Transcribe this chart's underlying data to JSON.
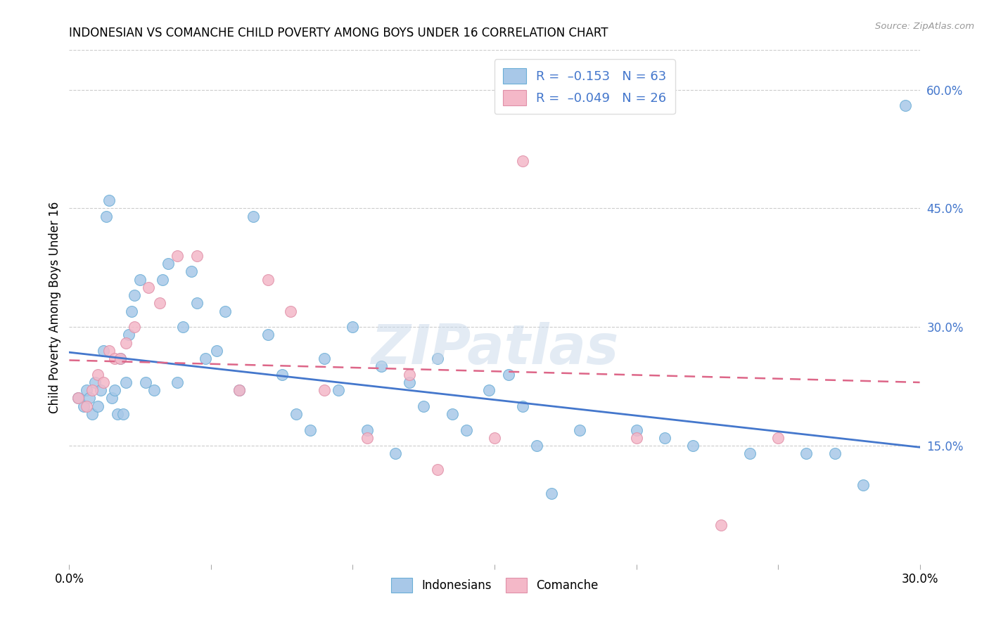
{
  "title": "INDONESIAN VS COMANCHE CHILD POVERTY AMONG BOYS UNDER 16 CORRELATION CHART",
  "source": "Source: ZipAtlas.com",
  "ylabel": "Child Poverty Among Boys Under 16",
  "xlim": [
    0.0,
    0.3
  ],
  "ylim": [
    0.0,
    0.65
  ],
  "x_ticks": [
    0.0,
    0.05,
    0.1,
    0.15,
    0.2,
    0.25,
    0.3
  ],
  "x_tick_labels": [
    "0.0%",
    "",
    "",
    "",
    "",
    "",
    "30.0%"
  ],
  "y_ticks_right": [
    0.15,
    0.3,
    0.45,
    0.6
  ],
  "y_tick_labels_right": [
    "15.0%",
    "30.0%",
    "45.0%",
    "60.0%"
  ],
  "indonesian_color": "#a8c8e8",
  "comanche_color": "#f4b8c8",
  "indonesian_edge_color": "#6baed6",
  "comanche_edge_color": "#e090a8",
  "indonesian_line_color": "#4477cc",
  "comanche_line_color": "#dd6688",
  "right_tick_color": "#4477cc",
  "watermark": "ZIPatlas",
  "indonesian_x": [
    0.003,
    0.005,
    0.006,
    0.007,
    0.008,
    0.009,
    0.01,
    0.011,
    0.012,
    0.013,
    0.014,
    0.015,
    0.016,
    0.017,
    0.018,
    0.019,
    0.02,
    0.021,
    0.022,
    0.023,
    0.025,
    0.027,
    0.03,
    0.033,
    0.035,
    0.038,
    0.04,
    0.043,
    0.045,
    0.048,
    0.052,
    0.055,
    0.06,
    0.065,
    0.07,
    0.075,
    0.08,
    0.085,
    0.09,
    0.095,
    0.1,
    0.105,
    0.11,
    0.115,
    0.12,
    0.125,
    0.13,
    0.135,
    0.14,
    0.148,
    0.155,
    0.16,
    0.165,
    0.17,
    0.18,
    0.2,
    0.21,
    0.22,
    0.24,
    0.26,
    0.27,
    0.28,
    0.295
  ],
  "indonesian_y": [
    0.21,
    0.2,
    0.22,
    0.21,
    0.19,
    0.23,
    0.2,
    0.22,
    0.27,
    0.44,
    0.46,
    0.21,
    0.22,
    0.19,
    0.26,
    0.19,
    0.23,
    0.29,
    0.32,
    0.34,
    0.36,
    0.23,
    0.22,
    0.36,
    0.38,
    0.23,
    0.3,
    0.37,
    0.33,
    0.26,
    0.27,
    0.32,
    0.22,
    0.44,
    0.29,
    0.24,
    0.19,
    0.17,
    0.26,
    0.22,
    0.3,
    0.17,
    0.25,
    0.14,
    0.23,
    0.2,
    0.26,
    0.19,
    0.17,
    0.22,
    0.24,
    0.2,
    0.15,
    0.09,
    0.17,
    0.17,
    0.16,
    0.15,
    0.14,
    0.14,
    0.14,
    0.1,
    0.58
  ],
  "comanche_x": [
    0.003,
    0.006,
    0.008,
    0.01,
    0.012,
    0.014,
    0.016,
    0.018,
    0.02,
    0.023,
    0.028,
    0.032,
    0.038,
    0.045,
    0.06,
    0.07,
    0.078,
    0.09,
    0.105,
    0.12,
    0.13,
    0.15,
    0.16,
    0.2,
    0.23,
    0.25
  ],
  "comanche_y": [
    0.21,
    0.2,
    0.22,
    0.24,
    0.23,
    0.27,
    0.26,
    0.26,
    0.28,
    0.3,
    0.35,
    0.33,
    0.39,
    0.39,
    0.22,
    0.36,
    0.32,
    0.22,
    0.16,
    0.24,
    0.12,
    0.16,
    0.51,
    0.16,
    0.05,
    0.16
  ]
}
